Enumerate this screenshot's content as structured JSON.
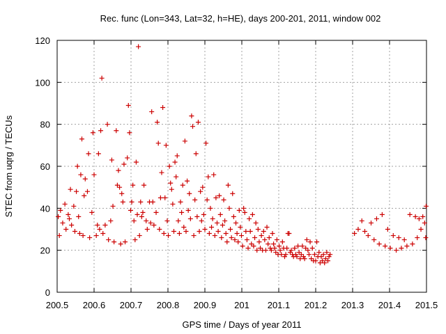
{
  "chart_data": {
    "type": "scatter",
    "title": "Rec. func (Lon=343, Lat=32, h=HE), days 200-201, 2011, window 002",
    "xlabel": "GPS time / Days of year 2011",
    "ylabel": "STEC from uqrg / TECUs",
    "xlim": [
      200.5,
      201.5
    ],
    "ylim": [
      0,
      120
    ],
    "grid": true,
    "marker": "plus",
    "marker_color": "#cc0000",
    "x_ticks": [
      {
        "value": 200.5,
        "label": "200.5"
      },
      {
        "value": 200.6,
        "label": "200.6"
      },
      {
        "value": 200.7,
        "label": "200.7"
      },
      {
        "value": 200.8,
        "label": "200.8"
      },
      {
        "value": 200.9,
        "label": "200.9"
      },
      {
        "value": 201.0,
        "label": "201"
      },
      {
        "value": 201.1,
        "label": "201.1"
      },
      {
        "value": 201.2,
        "label": "201.2"
      },
      {
        "value": 201.3,
        "label": "201.3"
      },
      {
        "value": 201.4,
        "label": "201.4"
      },
      {
        "value": 201.5,
        "label": "201.5"
      }
    ],
    "y_ticks": [
      {
        "value": 0,
        "label": "0"
      },
      {
        "value": 20,
        "label": "20"
      },
      {
        "value": 40,
        "label": "40"
      },
      {
        "value": 60,
        "label": "60"
      },
      {
        "value": 80,
        "label": "80"
      },
      {
        "value": 100,
        "label": "100"
      },
      {
        "value": 120,
        "label": "120"
      }
    ],
    "points": [
      [
        200.503,
        36
      ],
      [
        200.506,
        27
      ],
      [
        200.509,
        39
      ],
      [
        200.515,
        33
      ],
      [
        200.521,
        42
      ],
      [
        200.524,
        30
      ],
      [
        200.53,
        37
      ],
      [
        200.533,
        35
      ],
      [
        200.536,
        49
      ],
      [
        200.539,
        32
      ],
      [
        200.545,
        41
      ],
      [
        200.548,
        29
      ],
      [
        200.552,
        48
      ],
      [
        200.555,
        60
      ],
      [
        200.558,
        36
      ],
      [
        200.561,
        28
      ],
      [
        200.564,
        56
      ],
      [
        200.567,
        73
      ],
      [
        200.57,
        27
      ],
      [
        200.573,
        46
      ],
      [
        200.576,
        54
      ],
      [
        200.582,
        48
      ],
      [
        200.585,
        66
      ],
      [
        200.588,
        26
      ],
      [
        200.594,
        38
      ],
      [
        200.597,
        76
      ],
      [
        200.6,
        56
      ],
      [
        200.606,
        27
      ],
      [
        200.609,
        32
      ],
      [
        200.612,
        66
      ],
      [
        200.615,
        30
      ],
      [
        200.618,
        77
      ],
      [
        200.621,
        102
      ],
      [
        200.624,
        28
      ],
      [
        200.63,
        32
      ],
      [
        200.636,
        80
      ],
      [
        200.639,
        25
      ],
      [
        200.645,
        34
      ],
      [
        200.648,
        63
      ],
      [
        200.651,
        41
      ],
      [
        200.654,
        24
      ],
      [
        200.66,
        77
      ],
      [
        200.663,
        51
      ],
      [
        200.666,
        58
      ],
      [
        200.669,
        50
      ],
      [
        200.672,
        23
      ],
      [
        200.675,
        47
      ],
      [
        200.678,
        43
      ],
      [
        200.681,
        61
      ],
      [
        200.684,
        24
      ],
      [
        200.69,
        64
      ],
      [
        200.693,
        89
      ],
      [
        200.696,
        76
      ],
      [
        200.699,
        39
      ],
      [
        200.702,
        43
      ],
      [
        200.705,
        51
      ],
      [
        200.708,
        34
      ],
      [
        200.711,
        25
      ],
      [
        200.714,
        62
      ],
      [
        200.717,
        37
      ],
      [
        200.72,
        117
      ],
      [
        200.723,
        27
      ],
      [
        200.726,
        43
      ],
      [
        200.729,
        36
      ],
      [
        200.732,
        38
      ],
      [
        200.735,
        51
      ],
      [
        200.741,
        34
      ],
      [
        200.744,
        30
      ],
      [
        200.75,
        43
      ],
      [
        200.753,
        33
      ],
      [
        200.756,
        86
      ],
      [
        200.759,
        43
      ],
      [
        200.762,
        32
      ],
      [
        200.768,
        38
      ],
      [
        200.771,
        81
      ],
      [
        200.774,
        71
      ],
      [
        200.777,
        30
      ],
      [
        200.78,
        45
      ],
      [
        200.783,
        57
      ],
      [
        200.786,
        88
      ],
      [
        200.789,
        28
      ],
      [
        200.792,
        45
      ],
      [
        200.795,
        70
      ],
      [
        200.798,
        34
      ],
      [
        200.801,
        27
      ],
      [
        200.804,
        60
      ],
      [
        200.807,
        52
      ],
      [
        200.81,
        49
      ],
      [
        200.813,
        42
      ],
      [
        200.816,
        29
      ],
      [
        200.819,
        62
      ],
      [
        200.822,
        55
      ],
      [
        200.825,
        65
      ],
      [
        200.828,
        34
      ],
      [
        200.831,
        28
      ],
      [
        200.834,
        43
      ],
      [
        200.837,
        38
      ],
      [
        200.84,
        51
      ],
      [
        200.843,
        31
      ],
      [
        200.846,
        72
      ],
      [
        200.849,
        29
      ],
      [
        200.852,
        53
      ],
      [
        200.855,
        39
      ],
      [
        200.858,
        47
      ],
      [
        200.861,
        35
      ],
      [
        200.864,
        84
      ],
      [
        200.867,
        79
      ],
      [
        200.87,
        27
      ],
      [
        200.873,
        44
      ],
      [
        200.876,
        66
      ],
      [
        200.879,
        36
      ],
      [
        200.882,
        81
      ],
      [
        200.885,
        29
      ],
      [
        200.888,
        48
      ],
      [
        200.891,
        34
      ],
      [
        200.894,
        50
      ],
      [
        200.897,
        37
      ],
      [
        200.9,
        30
      ],
      [
        200.903,
        71
      ],
      [
        200.906,
        44
      ],
      [
        200.909,
        55
      ],
      [
        200.912,
        28
      ],
      [
        200.915,
        40
      ],
      [
        200.918,
        31
      ],
      [
        200.921,
        35
      ],
      [
        200.924,
        56
      ],
      [
        200.927,
        27
      ],
      [
        200.93,
        45
      ],
      [
        200.933,
        33
      ],
      [
        200.936,
        29
      ],
      [
        200.939,
        46
      ],
      [
        200.942,
        37
      ],
      [
        200.945,
        26
      ],
      [
        200.948,
        32
      ],
      [
        200.951,
        44
      ],
      [
        200.954,
        34
      ],
      [
        200.957,
        28
      ],
      [
        200.96,
        24
      ],
      [
        200.963,
        51
      ],
      [
        200.966,
        40
      ],
      [
        200.969,
        30
      ],
      [
        200.972,
        26
      ],
      [
        200.975,
        47
      ],
      [
        200.978,
        36
      ],
      [
        200.981,
        25
      ],
      [
        200.984,
        33
      ],
      [
        200.987,
        28
      ],
      [
        200.99,
        24
      ],
      [
        200.993,
        39
      ],
      [
        200.996,
        31
      ],
      [
        200.999,
        27
      ],
      [
        201.002,
        22
      ],
      [
        201.005,
        40
      ],
      [
        201.008,
        38
      ],
      [
        201.011,
        29
      ],
      [
        201.014,
        25
      ],
      [
        201.017,
        21
      ],
      [
        201.02,
        35
      ],
      [
        201.023,
        29
      ],
      [
        201.026,
        23
      ],
      [
        201.029,
        37
      ],
      [
        201.032,
        22
      ],
      [
        201.035,
        26
      ],
      [
        201.038,
        33
      ],
      [
        201.041,
        20
      ],
      [
        201.044,
        30
      ],
      [
        201.047,
        24
      ],
      [
        201.05,
        21
      ],
      [
        201.053,
        27
      ],
      [
        201.056,
        20
      ],
      [
        201.059,
        29
      ],
      [
        201.062,
        25
      ],
      [
        201.065,
        20
      ],
      [
        201.068,
        31
      ],
      [
        201.071,
        23
      ],
      [
        201.074,
        26
      ],
      [
        201.077,
        21
      ],
      [
        201.08,
        20
      ],
      [
        201.083,
        28
      ],
      [
        201.086,
        23
      ],
      [
        201.089,
        21
      ],
      [
        201.092,
        19
      ],
      [
        201.095,
        25
      ],
      [
        201.098,
        18
      ],
      [
        201.101,
        22
      ],
      [
        201.104,
        20
      ],
      [
        201.107,
        18
      ],
      [
        201.11,
        24
      ],
      [
        201.113,
        21
      ],
      [
        201.116,
        17
      ],
      [
        201.119,
        18
      ],
      [
        201.122,
        21
      ],
      [
        201.125,
        28
      ],
      [
        201.128,
        28
      ],
      [
        201.131,
        19
      ],
      [
        201.134,
        20
      ],
      [
        201.137,
        18
      ],
      [
        201.14,
        17
      ],
      [
        201.143,
        21
      ],
      [
        201.146,
        18
      ],
      [
        201.149,
        17
      ],
      [
        201.152,
        22
      ],
      [
        201.155,
        19
      ],
      [
        201.158,
        16
      ],
      [
        201.161,
        18
      ],
      [
        201.164,
        22
      ],
      [
        201.167,
        17
      ],
      [
        201.17,
        16
      ],
      [
        201.173,
        21
      ],
      [
        201.176,
        25
      ],
      [
        201.179,
        20
      ],
      [
        201.182,
        18
      ],
      [
        201.185,
        24
      ],
      [
        201.188,
        16
      ],
      [
        201.191,
        21
      ],
      [
        201.194,
        15
      ],
      [
        201.197,
        18
      ],
      [
        201.2,
        15
      ],
      [
        201.203,
        24
      ],
      [
        201.206,
        17
      ],
      [
        201.209,
        19
      ],
      [
        201.212,
        14
      ],
      [
        201.215,
        17
      ],
      [
        201.218,
        15
      ],
      [
        201.221,
        18
      ],
      [
        201.224,
        14
      ],
      [
        201.227,
        16
      ],
      [
        201.23,
        19
      ],
      [
        201.233,
        15
      ],
      [
        201.236,
        17
      ],
      [
        201.239,
        18
      ],
      [
        201.305,
        28
      ],
      [
        201.315,
        30
      ],
      [
        201.325,
        34
      ],
      [
        201.333,
        29
      ],
      [
        201.342,
        27
      ],
      [
        201.35,
        33
      ],
      [
        201.358,
        25
      ],
      [
        201.365,
        35
      ],
      [
        201.372,
        23
      ],
      [
        201.38,
        37
      ],
      [
        201.388,
        22
      ],
      [
        201.395,
        30
      ],
      [
        201.402,
        21
      ],
      [
        201.41,
        27
      ],
      [
        201.418,
        20
      ],
      [
        201.425,
        26
      ],
      [
        201.432,
        21
      ],
      [
        201.44,
        25
      ],
      [
        201.447,
        22
      ],
      [
        201.455,
        37
      ],
      [
        201.462,
        23
      ],
      [
        201.47,
        36
      ],
      [
        201.475,
        26
      ],
      [
        201.48,
        35
      ],
      [
        201.485,
        30
      ],
      [
        201.49,
        36
      ],
      [
        201.495,
        33
      ],
      [
        201.498,
        26
      ],
      [
        201.499,
        41
      ]
    ]
  }
}
